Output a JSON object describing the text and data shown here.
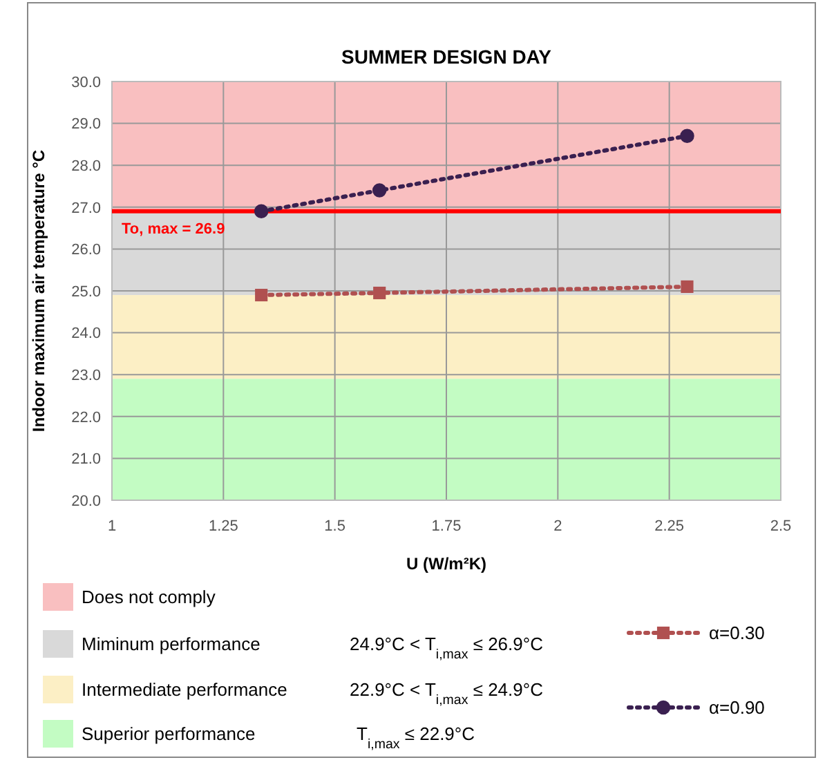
{
  "chart_data": {
    "type": "line",
    "title": "SUMMER DESIGN DAY",
    "xlabel": "U (W/m²K)",
    "ylabel": "Indoor maximum air temperature   °C",
    "xlim": [
      1,
      2.5
    ],
    "xticks": [
      1,
      1.25,
      1.5,
      1.75,
      2,
      2.25,
      2.5
    ],
    "ylim": [
      20,
      30
    ],
    "yticks": [
      {
        "value": 20,
        "label": "20.0"
      },
      {
        "value": 21,
        "label": "21.0"
      },
      {
        "value": 22,
        "label": "22.0"
      },
      {
        "value": 23,
        "label": "23.0"
      },
      {
        "value": 24,
        "label": "24.0"
      },
      {
        "value": 25,
        "label": "25.0"
      },
      {
        "value": 26,
        "label": "26.0"
      },
      {
        "value": 27,
        "label": "27.0"
      },
      {
        "value": 28,
        "label": "28.0"
      },
      {
        "value": 29,
        "label": "29.0"
      },
      {
        "value": 30,
        "label": "30.0"
      }
    ],
    "grid": true,
    "legend": "bottom",
    "line_style": "dotted",
    "bands": [
      {
        "axis": "y",
        "from": 26.9,
        "to": 30,
        "label": "Does not comply",
        "color": "#f9bfc0"
      },
      {
        "axis": "y",
        "from": 24.9,
        "to": 26.9,
        "label": "Miminum performance",
        "color": "#d9d9d9"
      },
      {
        "axis": "y",
        "from": 22.9,
        "to": 24.9,
        "label": "Intermediate performance",
        "color": "#fcefc5"
      },
      {
        "axis": "y",
        "from": 20,
        "to": 22.9,
        "label": "Superior performance",
        "color": "#c3fcc3"
      }
    ],
    "ref_lines": [
      {
        "axis": "y",
        "value": 26.9,
        "label": "To, max = 26.9",
        "color": "#ff0000"
      }
    ],
    "annotations": [
      "24.9°C < T$_{i,max}$ ≤ 26.9°C",
      "22.9°C < T$_{i,max}$  ≤ 24.9°C",
      "T$_{i,max}$  ≤ 22.9°C"
    ],
    "series": [
      {
        "name": "α=0.30",
        "color": "#b05050",
        "marker": "square",
        "x": [
          1.335,
          1.6,
          2.29
        ],
        "values": [
          24.9,
          24.95,
          25.1
        ]
      },
      {
        "name": "α=0.90",
        "color": "#3a2050",
        "marker": "circle",
        "x": [
          1.335,
          1.6,
          2.29
        ],
        "values": [
          26.9,
          27.4,
          28.7
        ]
      }
    ]
  }
}
